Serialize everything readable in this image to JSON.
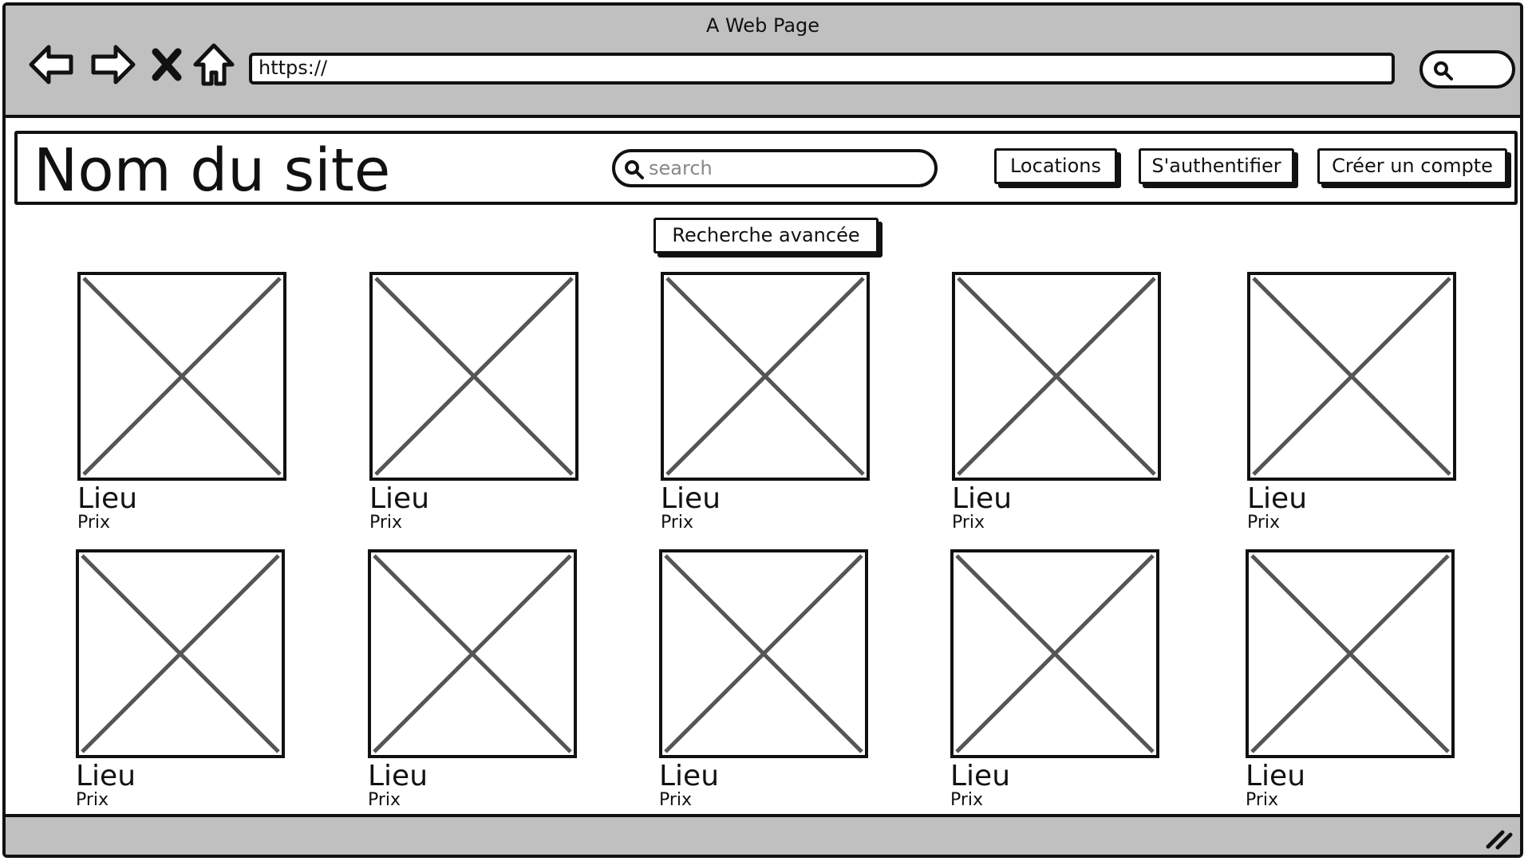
{
  "browser": {
    "window_title": "A Web Page",
    "url": "https://",
    "nav_icons": [
      "back-arrow-icon",
      "forward-arrow-icon",
      "close-x-icon",
      "home-icon"
    ]
  },
  "header": {
    "site_title": "Nom du site",
    "search_placeholder": "search",
    "buttons": {
      "locations": "Locations",
      "login": "S'authentifier",
      "signup": "Créer un compte"
    }
  },
  "advanced_search_label": "Recherche avancée",
  "listings": [
    {
      "lieu": "Lieu",
      "prix": "Prix"
    },
    {
      "lieu": "Lieu",
      "prix": "Prix"
    },
    {
      "lieu": "Lieu",
      "prix": "Prix"
    },
    {
      "lieu": "Lieu",
      "prix": "Prix"
    },
    {
      "lieu": "Lieu",
      "prix": "Prix"
    },
    {
      "lieu": "Lieu",
      "prix": "Prix"
    },
    {
      "lieu": "Lieu",
      "prix": "Prix"
    },
    {
      "lieu": "Lieu",
      "prix": "Prix"
    },
    {
      "lieu": "Lieu",
      "prix": "Prix"
    },
    {
      "lieu": "Lieu",
      "prix": "Prix"
    }
  ],
  "colors": {
    "chrome_gray": "#c0c0c0",
    "ink": "#111111",
    "placeholder_cross": "#555555"
  }
}
